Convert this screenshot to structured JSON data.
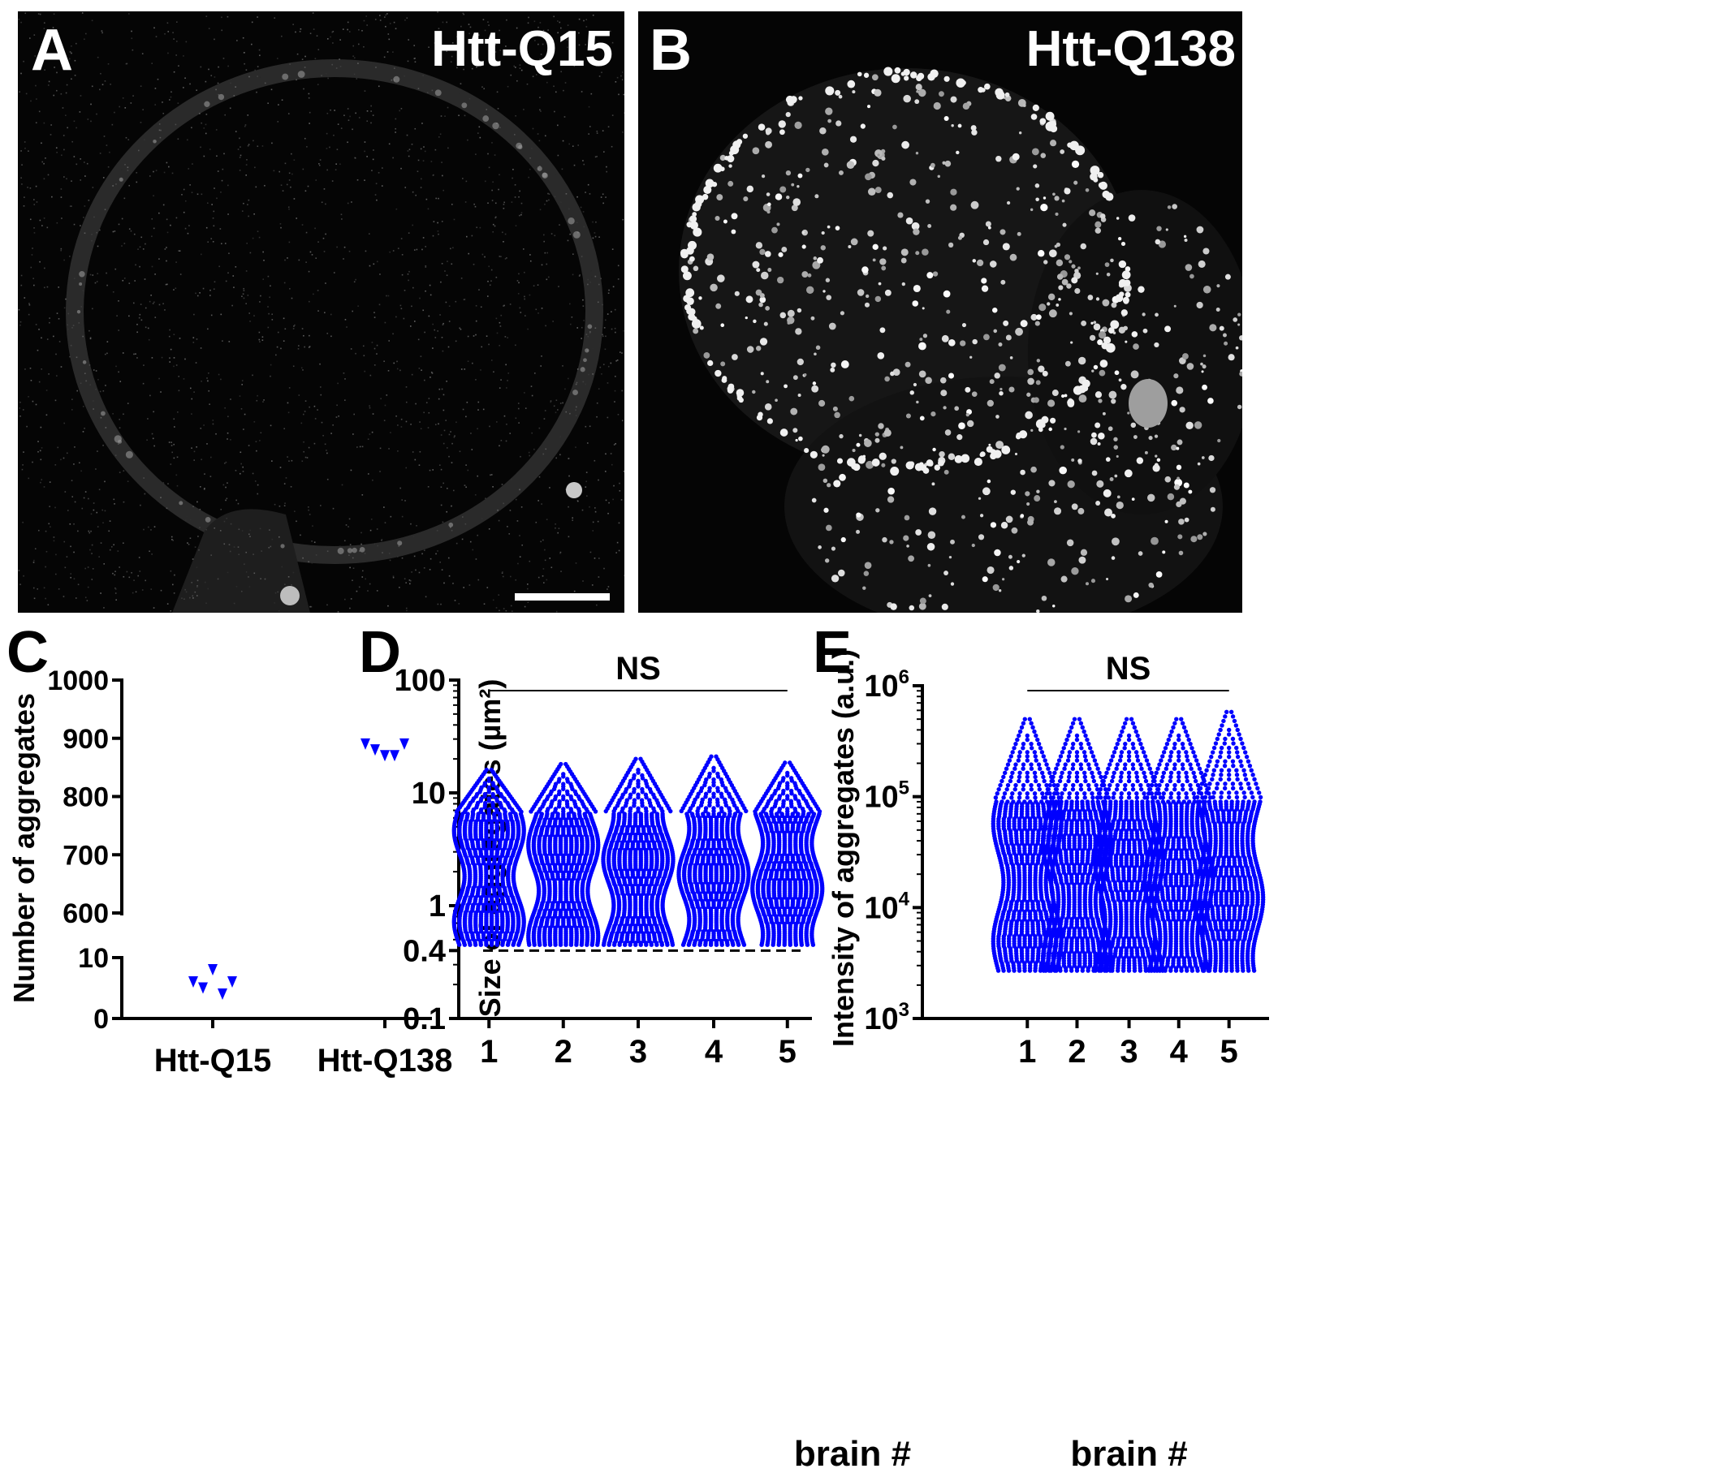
{
  "panels": {
    "A": {
      "letter": "A",
      "label": "Htt-Q15"
    },
    "B": {
      "letter": "B",
      "label": "Htt-Q138"
    },
    "C": {
      "letter": "C"
    },
    "D": {
      "letter": "D"
    },
    "E": {
      "letter": "E"
    }
  },
  "colors": {
    "points": "#0000ff",
    "axis": "#000000",
    "micrograph_bg": "#050505",
    "micrograph_fg": "#ffffff"
  },
  "chart_data": [
    {
      "id": "C",
      "type": "scatter",
      "ylabel": "Number of aggregates",
      "categories": [
        "Htt-Q15",
        "Htt-Q138"
      ],
      "y_axis_break": {
        "lower": [
          0,
          10
        ],
        "upper": [
          600,
          1000
        ]
      },
      "y_ticks_lower": [
        "0",
        "10"
      ],
      "y_ticks_upper": [
        "600",
        "700",
        "800",
        "900",
        "1000"
      ],
      "series": [
        {
          "category": "Htt-Q15",
          "values": [
            6,
            5,
            8,
            4,
            6
          ]
        },
        {
          "category": "Htt-Q138",
          "values": [
            890,
            880,
            870,
            870,
            890
          ]
        }
      ],
      "marker": "triangle-down"
    },
    {
      "id": "D",
      "type": "scatter",
      "xlabel": "brain #",
      "ylabel": "Size of aggregates (µm²)",
      "yscale": "log",
      "ylim": [
        0.1,
        100
      ],
      "y_tick_labels": [
        "0.1",
        "0.4",
        "1",
        "10",
        "100"
      ],
      "y_tick_values": [
        0.1,
        0.4,
        1,
        10,
        100
      ],
      "threshold_line": {
        "value": 0.4,
        "style": "dashed"
      },
      "significance": "NS",
      "categories": [
        "1",
        "2",
        "3",
        "4",
        "5"
      ],
      "distribution": {
        "min": 0.45,
        "bulk_max": 6.5,
        "max": [
          16,
          18,
          20,
          21,
          18.5
        ]
      }
    },
    {
      "id": "E",
      "type": "scatter",
      "xlabel": "brain #",
      "ylabel": "Intensity of aggregates (a.u.)",
      "yscale": "log",
      "ylim": [
        1000,
        1000000
      ],
      "y_tick_values": [
        1000,
        10000,
        100000,
        1000000
      ],
      "y_tick_labels": [
        {
          "base": "10",
          "exp": "3"
        },
        {
          "base": "10",
          "exp": "4"
        },
        {
          "base": "10",
          "exp": "5"
        },
        {
          "base": "10",
          "exp": "6"
        }
      ],
      "significance": "NS",
      "categories": [
        "1",
        "2",
        "3",
        "4",
        "5"
      ],
      "distribution": {
        "min": 2700,
        "bulk_max": 90000,
        "max": [
          500000,
          500000,
          500000,
          500000,
          580000
        ]
      }
    }
  ]
}
